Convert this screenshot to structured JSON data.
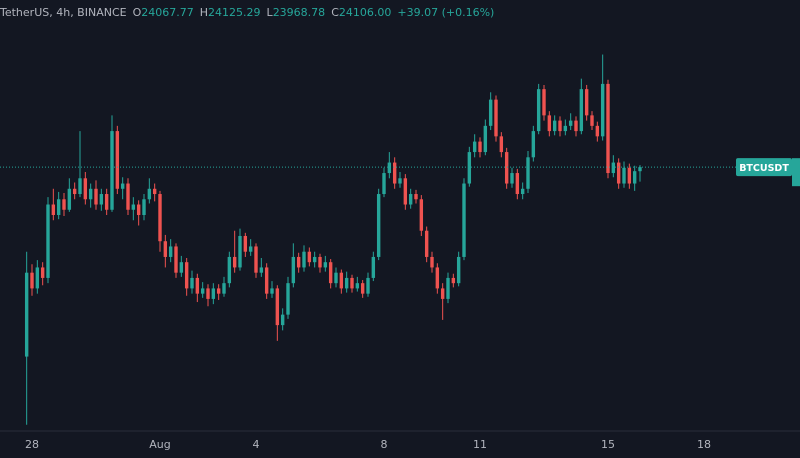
{
  "chart_data": {
    "type": "candlestick",
    "header": {
      "symbol": "TetherUS, 4h, BINANCE",
      "ohlc": [
        {
          "key": "O",
          "value": "24067.77"
        },
        {
          "key": "H",
          "value": "24125.29"
        },
        {
          "key": "L",
          "value": "23968.78"
        },
        {
          "key": "C",
          "value": "24106.00"
        }
      ],
      "change": "+39.07 (+0.16%)"
    },
    "price_label": "BTCUSDT",
    "up_color": "#26a69a",
    "down_color": "#ef5350",
    "xlim": [
      -5,
      145
    ],
    "xticks": [
      {
        "value": 1,
        "label": "28"
      },
      {
        "value": 25,
        "label": "Aug"
      },
      {
        "value": 43,
        "label": "4"
      },
      {
        "value": 67,
        "label": "8"
      },
      {
        "value": 85,
        "label": "11"
      },
      {
        "value": 109,
        "label": "15"
      },
      {
        "value": 127,
        "label": "18"
      }
    ],
    "ylim": [
      21600,
      25700
    ],
    "candles": [
      [
        22300,
        23300,
        21650,
        23100
      ],
      [
        23100,
        23180,
        22880,
        22950
      ],
      [
        22950,
        23220,
        22900,
        23150
      ],
      [
        23150,
        23200,
        22980,
        23050
      ],
      [
        23050,
        23820,
        23000,
        23750
      ],
      [
        23750,
        23900,
        23600,
        23650
      ],
      [
        23650,
        23870,
        23610,
        23800
      ],
      [
        23800,
        23860,
        23640,
        23700
      ],
      [
        23700,
        24000,
        23680,
        23900
      ],
      [
        23900,
        23960,
        23800,
        23850
      ],
      [
        23850,
        24450,
        23820,
        24000
      ],
      [
        24000,
        24060,
        23750,
        23800
      ],
      [
        23800,
        23950,
        23720,
        23900
      ],
      [
        23900,
        23980,
        23700,
        23750
      ],
      [
        23750,
        23900,
        23690,
        23850
      ],
      [
        23850,
        23900,
        23650,
        23700
      ],
      [
        23700,
        24600,
        23680,
        24450
      ],
      [
        24450,
        24500,
        23850,
        23900
      ],
      [
        23900,
        24010,
        23800,
        23950
      ],
      [
        23950,
        24000,
        23650,
        23700
      ],
      [
        23700,
        23820,
        23600,
        23750
      ],
      [
        23750,
        23790,
        23550,
        23650
      ],
      [
        23650,
        23850,
        23600,
        23800
      ],
      [
        23800,
        24000,
        23760,
        23900
      ],
      [
        23900,
        23950,
        23780,
        23850
      ],
      [
        23850,
        23880,
        23300,
        23400
      ],
      [
        23400,
        23460,
        23150,
        23250
      ],
      [
        23250,
        23420,
        23200,
        23350
      ],
      [
        23350,
        23380,
        23050,
        23100
      ],
      [
        23100,
        23260,
        23060,
        23200
      ],
      [
        23200,
        23240,
        22880,
        22950
      ],
      [
        22950,
        23120,
        22900,
        23050
      ],
      [
        23050,
        23090,
        22820,
        22900
      ],
      [
        22900,
        23010,
        22860,
        22950
      ],
      [
        22950,
        22990,
        22780,
        22850
      ],
      [
        22850,
        23000,
        22800,
        22950
      ],
      [
        22950,
        22990,
        22840,
        22900
      ],
      [
        22900,
        23060,
        22870,
        23000
      ],
      [
        23000,
        23300,
        22960,
        23250
      ],
      [
        23250,
        23500,
        23100,
        23150
      ],
      [
        23150,
        23520,
        23120,
        23450
      ],
      [
        23450,
        23480,
        23250,
        23300
      ],
      [
        23300,
        23420,
        23260,
        23350
      ],
      [
        23350,
        23380,
        23050,
        23100
      ],
      [
        23100,
        23240,
        23060,
        23150
      ],
      [
        23150,
        23190,
        22850,
        22900
      ],
      [
        22900,
        23020,
        22860,
        22950
      ],
      [
        22950,
        22980,
        22450,
        22600
      ],
      [
        22600,
        22760,
        22550,
        22700
      ],
      [
        22700,
        23060,
        22660,
        23000
      ],
      [
        23000,
        23380,
        22960,
        23250
      ],
      [
        23250,
        23290,
        23100,
        23150
      ],
      [
        23150,
        23360,
        23110,
        23300
      ],
      [
        23300,
        23340,
        23160,
        23200
      ],
      [
        23200,
        23300,
        23150,
        23250
      ],
      [
        23250,
        23280,
        23100,
        23150
      ],
      [
        23150,
        23260,
        23110,
        23200
      ],
      [
        23200,
        23230,
        22950,
        23000
      ],
      [
        23000,
        23150,
        22960,
        23100
      ],
      [
        23100,
        23130,
        22900,
        22950
      ],
      [
        22950,
        23110,
        22910,
        23050
      ],
      [
        23050,
        23080,
        22910,
        22950
      ],
      [
        22950,
        23060,
        22920,
        23000
      ],
      [
        23000,
        23030,
        22860,
        22900
      ],
      [
        22900,
        23100,
        22870,
        23050
      ],
      [
        23050,
        23300,
        23020,
        23250
      ],
      [
        23250,
        23900,
        23220,
        23850
      ],
      [
        23850,
        24100,
        23820,
        24050
      ],
      [
        24050,
        24250,
        24000,
        24150
      ],
      [
        24150,
        24200,
        23900,
        23950
      ],
      [
        23950,
        24060,
        23910,
        24000
      ],
      [
        24000,
        24040,
        23700,
        23750
      ],
      [
        23750,
        23900,
        23710,
        23850
      ],
      [
        23850,
        23890,
        23760,
        23800
      ],
      [
        23800,
        23840,
        23450,
        23500
      ],
      [
        23500,
        23540,
        23200,
        23250
      ],
      [
        23250,
        23300,
        23100,
        23150
      ],
      [
        23150,
        23190,
        22900,
        22950
      ],
      [
        22950,
        23000,
        22650,
        22850
      ],
      [
        22850,
        23100,
        22810,
        23050
      ],
      [
        23050,
        23090,
        22960,
        23000
      ],
      [
        23000,
        23300,
        22970,
        23250
      ],
      [
        23250,
        24000,
        23220,
        23950
      ],
      [
        23950,
        24300,
        23920,
        24250
      ],
      [
        24250,
        24420,
        24200,
        24350
      ],
      [
        24350,
        24390,
        24200,
        24250
      ],
      [
        24250,
        24560,
        24220,
        24500
      ],
      [
        24500,
        24820,
        24460,
        24750
      ],
      [
        24750,
        24790,
        24350,
        24400
      ],
      [
        24400,
        24440,
        24200,
        24250
      ],
      [
        24250,
        24290,
        23900,
        23950
      ],
      [
        23950,
        24100,
        23910,
        24050
      ],
      [
        24050,
        24090,
        23800,
        23850
      ],
      [
        23850,
        23960,
        23800,
        23900
      ],
      [
        23900,
        24260,
        23860,
        24200
      ],
      [
        24200,
        24500,
        24160,
        24450
      ],
      [
        24450,
        24900,
        24420,
        24850
      ],
      [
        24850,
        24890,
        24550,
        24600
      ],
      [
        24600,
        24640,
        24400,
        24450
      ],
      [
        24450,
        24600,
        24410,
        24550
      ],
      [
        24550,
        24590,
        24400,
        24450
      ],
      [
        24450,
        24560,
        24410,
        24500
      ],
      [
        24500,
        24620,
        24460,
        24550
      ],
      [
        24550,
        24590,
        24400,
        24450
      ],
      [
        24450,
        24950,
        24420,
        24850
      ],
      [
        24850,
        24890,
        24550,
        24600
      ],
      [
        24600,
        24640,
        24460,
        24500
      ],
      [
        24500,
        24540,
        24350,
        24400
      ],
      [
        24400,
        25180,
        24360,
        24900
      ],
      [
        24900,
        24940,
        24000,
        24050
      ],
      [
        24050,
        24220,
        24010,
        24150
      ],
      [
        24150,
        24190,
        23900,
        23950
      ],
      [
        23950,
        24160,
        23910,
        24100
      ],
      [
        24100,
        24140,
        23900,
        23950
      ],
      [
        23950,
        24120,
        23880,
        24067.77
      ],
      [
        24067.77,
        24125.29,
        23968.78,
        24106
      ]
    ]
  }
}
